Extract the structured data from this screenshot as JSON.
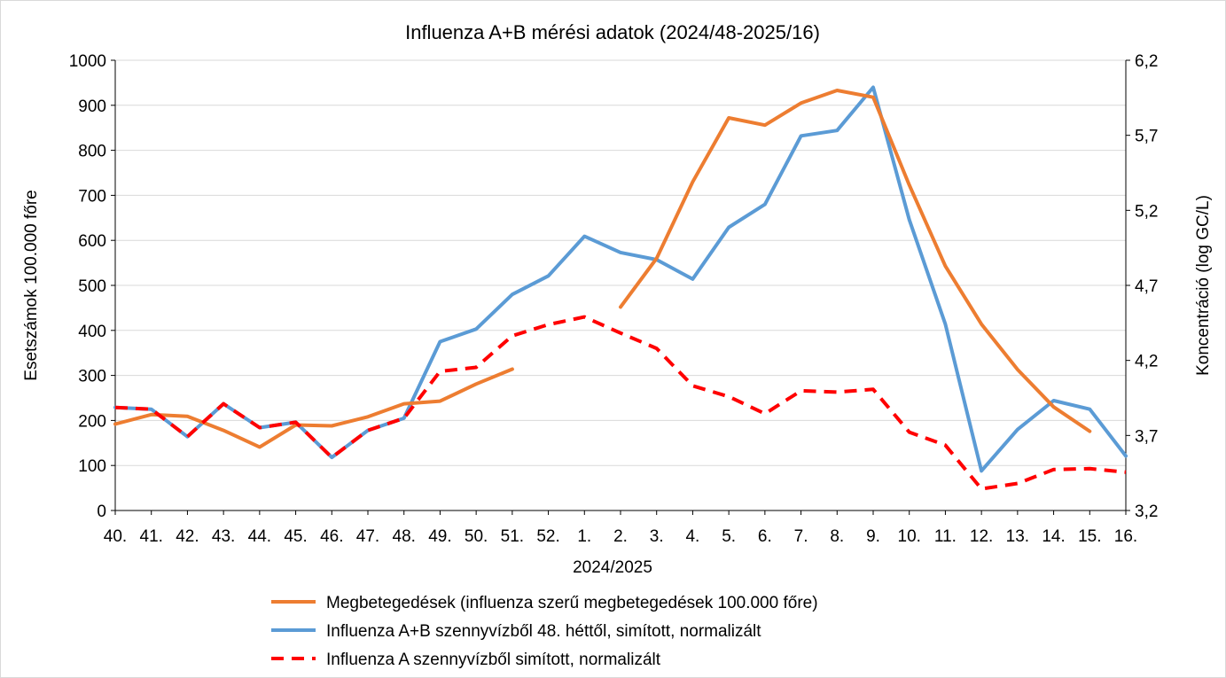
{
  "chart_data": {
    "type": "line",
    "title": "Influenza A+B mérési adatok (2024/48-2025/16)",
    "xlabel": "2024/2025",
    "ylabel_left": "Esetszámok 100.000 főre",
    "ylabel_right": "Koncentráció (log GC/L)",
    "categories": [
      "40.",
      "41.",
      "42.",
      "43.",
      "44.",
      "45.",
      "46.",
      "47.",
      "48.",
      "49.",
      "50.",
      "51.",
      "52.",
      "1.",
      "2.",
      "3.",
      "4.",
      "5.",
      "6.",
      "7.",
      "8.",
      "9.",
      "10.",
      "11.",
      "12.",
      "13.",
      "14.",
      "15.",
      "16."
    ],
    "ylim_left": [
      0,
      1000
    ],
    "yticks_left": [
      "0",
      "100",
      "200",
      "300",
      "400",
      "500",
      "600",
      "700",
      "800",
      "900",
      "1000"
    ],
    "ylim_right": [
      3.2,
      6.2
    ],
    "yticks_right": [
      "3,2",
      "3,7",
      "4,2",
      "4,7",
      "5,2",
      "5,7",
      "6,2"
    ],
    "grid": true,
    "legend_position": "bottom",
    "series": [
      {
        "name": "Megbetegedések (influenza szerű megbetegedések 100.000 főre)",
        "color": "#ED7D31",
        "style": "solid",
        "axis": "left",
        "values": [
          192,
          213,
          209,
          178,
          141,
          190,
          188,
          208,
          237,
          243,
          281,
          314,
          null,
          null,
          452,
          560,
          730,
          872,
          856,
          905,
          933,
          918,
          723,
          543,
          414,
          313,
          230,
          176,
          null
        ]
      },
      {
        "name": "Influenza A+B szennyvízből 48. héttől, simított, normalizált",
        "color": "#5B9BD5",
        "style": "solid",
        "axis": "left",
        "values": [
          229,
          225,
          164,
          237,
          184,
          196,
          118,
          178,
          205,
          375,
          403,
          480,
          521,
          609,
          573,
          557,
          514,
          629,
          680,
          832,
          844,
          940,
          646,
          414,
          88,
          180,
          244,
          225,
          121
        ]
      },
      {
        "name": "Influenza A szennyvízből simított, normalizált",
        "color": "#FF0000",
        "style": "dashed",
        "axis": "left",
        "values": [
          229,
          225,
          164,
          237,
          184,
          196,
          118,
          178,
          205,
          309,
          318,
          388,
          413,
          430,
          394,
          360,
          277,
          253,
          215,
          266,
          263,
          269,
          174,
          145,
          48,
          60,
          91,
          93,
          85
        ]
      }
    ]
  }
}
